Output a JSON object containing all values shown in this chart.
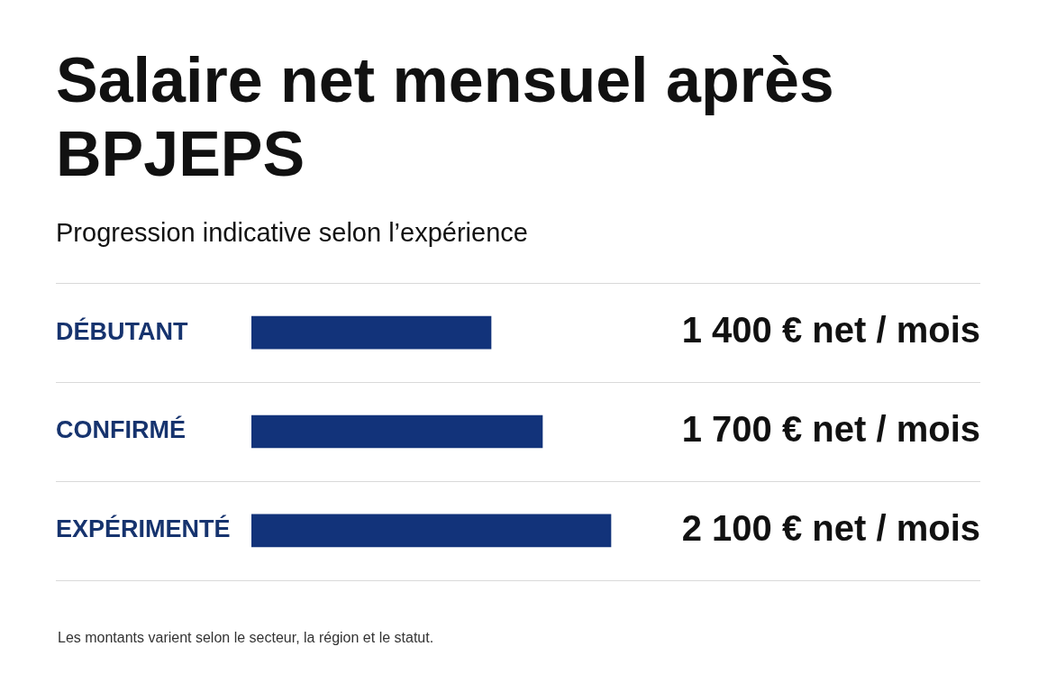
{
  "chart_data": {
    "type": "bar",
    "orientation": "horizontal",
    "title": "Salaire net mensuel après BPJEPS",
    "subtitle": "Progression indicative selon l’expérience",
    "categories": [
      "DÉBUTANT",
      "CONFIRMÉ",
      "EXPÉRIMENTÉ"
    ],
    "values": [
      1400,
      1700,
      2100
    ],
    "color": "#12337a",
    "value_labels": [
      "1 400 € net / mois",
      "1 700 € net / mois",
      "2 100 € net / mois"
    ],
    "grid": "y",
    "tick_labels": "y",
    "legend": false,
    "annotations": [
      "Les montants varient selon le secteur, la région et le statut."
    ]
  }
}
